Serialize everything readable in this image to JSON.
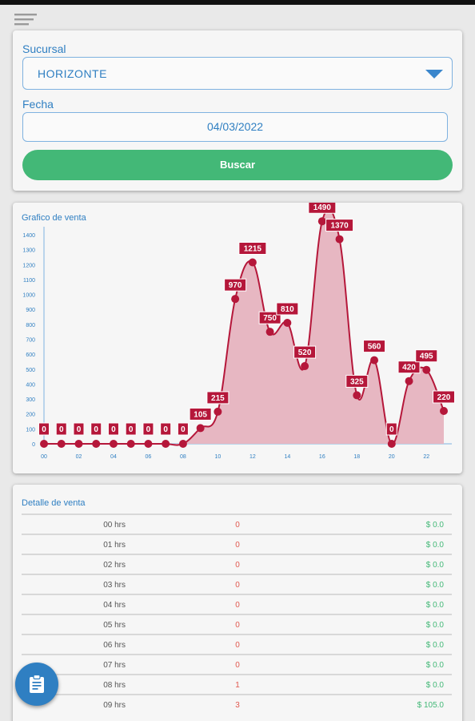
{
  "form": {
    "branch_label": "Sucursal",
    "branch_value": "HORIZONTE",
    "date_label": "Fecha",
    "date_value": "04/03/2022",
    "search_button": "Buscar"
  },
  "chart": {
    "title": "Grafico de venta"
  },
  "chart_data": {
    "type": "area",
    "title": "Grafico de venta",
    "x": [
      0,
      1,
      2,
      3,
      4,
      5,
      6,
      7,
      8,
      9,
      10,
      11,
      12,
      13,
      14,
      15,
      16,
      17,
      18,
      19,
      20,
      21,
      22,
      23
    ],
    "x_tick_labels": [
      "00",
      "02",
      "04",
      "06",
      "08",
      "10",
      "12",
      "14",
      "16",
      "18",
      "20",
      "22"
    ],
    "y_tick_labels": [
      "0",
      "100",
      "200",
      "300",
      "400",
      "500",
      "600",
      "700",
      "800",
      "900",
      "1000",
      "1100",
      "1200",
      "1300",
      "1400"
    ],
    "values": [
      0,
      0,
      0,
      0,
      0,
      0,
      0,
      0,
      0,
      105,
      215,
      970,
      1215,
      750,
      810,
      520,
      1490,
      1370,
      325,
      560,
      0,
      420,
      495,
      220
    ],
    "series_color": "#b5173a",
    "fill_color": "#e7b7c2",
    "ylim": [
      0,
      1400
    ]
  },
  "detail": {
    "title": "Detalle de venta",
    "rows": [
      {
        "hour": "00 hrs",
        "count": "0",
        "amount": "$ 0.0"
      },
      {
        "hour": "01 hrs",
        "count": "0",
        "amount": "$ 0.0"
      },
      {
        "hour": "02 hrs",
        "count": "0",
        "amount": "$ 0.0"
      },
      {
        "hour": "03 hrs",
        "count": "0",
        "amount": "$ 0.0"
      },
      {
        "hour": "04 hrs",
        "count": "0",
        "amount": "$ 0.0"
      },
      {
        "hour": "05 hrs",
        "count": "0",
        "amount": "$ 0.0"
      },
      {
        "hour": "06 hrs",
        "count": "0",
        "amount": "$ 0.0"
      },
      {
        "hour": "07 hrs",
        "count": "0",
        "amount": "$ 0.0"
      },
      {
        "hour": "08 hrs",
        "count": "1",
        "amount": "$ 0.0"
      },
      {
        "hour": "09 hrs",
        "count": "3",
        "amount": "$ 105.0"
      }
    ]
  },
  "icons": {
    "menu": "menu-icon",
    "dropdown": "chevron-down-icon",
    "fab": "clipboard-icon"
  }
}
